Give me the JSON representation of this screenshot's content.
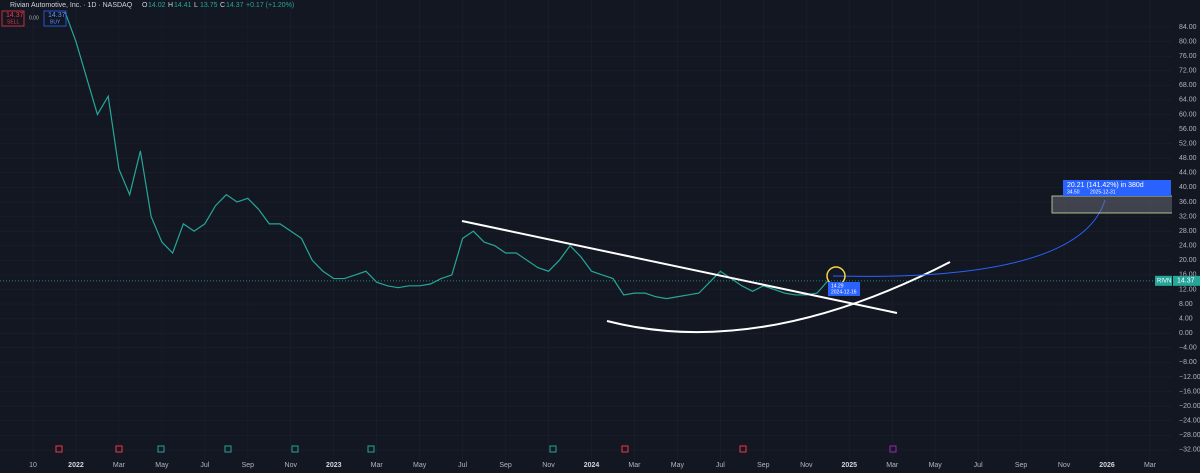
{
  "chart_data": {
    "type": "line",
    "title": "Rivian Automotive, Inc. · 1D · NASDAQ",
    "ohlc": [
      {
        "label": "O",
        "value": 14.02
      },
      {
        "label": "H",
        "value": 14.41
      },
      {
        "label": "L",
        "value": 13.75
      },
      {
        "label": "C",
        "value": 14.37
      }
    ],
    "change": "+0.17 (+1.20%)",
    "sell": {
      "price": 14.37,
      "label": "SELL"
    },
    "spread": "0.00",
    "buy": {
      "price": 14.37,
      "label": "BUY"
    },
    "symbol": "RIVN",
    "last_price": 14.37,
    "projection": {
      "text": "20.21 (141.42%) in 380d",
      "price": "34.50",
      "date": "2025-12-31"
    },
    "marker": {
      "price": "14.29",
      "date": "2024-12-16"
    },
    "color": "#26a69a",
    "ylim": [
      -33.4,
      91.4
    ],
    "yticks": [
      {
        "value": 84,
        "label": "84.00"
      },
      {
        "value": 80,
        "label": "80.00"
      },
      {
        "value": 76,
        "label": "76.00"
      },
      {
        "value": 72,
        "label": "72.00"
      },
      {
        "value": 68,
        "label": "68.00"
      },
      {
        "value": 64,
        "label": "64.00"
      },
      {
        "value": 60,
        "label": "60.00"
      },
      {
        "value": 56,
        "label": "56.00"
      },
      {
        "value": 52,
        "label": "52.00"
      },
      {
        "value": 48,
        "label": "48.00"
      },
      {
        "value": 44,
        "label": "44.00"
      },
      {
        "value": 40,
        "label": "40.00"
      },
      {
        "value": 36,
        "label": "36.00"
      },
      {
        "value": 32,
        "label": "32.00"
      },
      {
        "value": 28,
        "label": "28.00"
      },
      {
        "value": 24,
        "label": "24.00"
      },
      {
        "value": 20,
        "label": "20.00"
      },
      {
        "value": 16,
        "label": "16.00"
      },
      {
        "value": 12,
        "label": "12.00"
      },
      {
        "value": 8,
        "label": "8.00"
      },
      {
        "value": 4,
        "label": "4.00"
      },
      {
        "value": 0,
        "label": "0.00"
      },
      {
        "value": -4,
        "label": "−4.00"
      },
      {
        "value": -8,
        "label": "−8.00"
      },
      {
        "value": -12,
        "label": "−12.00"
      },
      {
        "value": -16,
        "label": "−16.00"
      },
      {
        "value": -20,
        "label": "−20.00"
      },
      {
        "value": -24,
        "label": "−24.00"
      },
      {
        "value": -28,
        "label": "−28.00"
      },
      {
        "value": -32,
        "label": "−32.00"
      }
    ],
    "categories": [
      "10",
      null,
      null,
      null,
      "2022",
      null,
      null,
      null,
      "Mar",
      null,
      null,
      null,
      "May",
      null,
      null,
      null,
      "Jul",
      null,
      null,
      null,
      "Sep",
      null,
      null,
      null,
      "Nov",
      null,
      null,
      null,
      "2023",
      null,
      null,
      null,
      "Mar",
      null,
      null,
      null,
      "May",
      null,
      null,
      null,
      "Jul",
      null,
      null,
      null,
      "Sep",
      null,
      null,
      null,
      "Nov",
      null,
      null,
      null,
      "2024",
      null,
      null,
      null,
      "Mar",
      null,
      null,
      null,
      "May",
      null,
      null,
      null,
      "Jul",
      null,
      null,
      null,
      "Sep",
      null,
      null,
      null,
      "Nov",
      null,
      null,
      null,
      "2025",
      null,
      null,
      null,
      "Mar",
      null,
      null,
      null,
      "May",
      null,
      null,
      null,
      "Jul",
      null,
      null,
      null,
      "Sep",
      null,
      null,
      null,
      "Nov",
      null,
      null,
      null,
      "2026",
      null,
      null,
      null,
      "Mar"
    ],
    "values": [
      null,
      null,
      null,
      88,
      80,
      70,
      60,
      65,
      45,
      38,
      50,
      32,
      25,
      22,
      30,
      28,
      30,
      35,
      38,
      36,
      37,
      34,
      30,
      30,
      28,
      26,
      20,
      17,
      15,
      15,
      16,
      17,
      14,
      13,
      12.5,
      13,
      13,
      13.5,
      15,
      16,
      26,
      28,
      25,
      24,
      22,
      22,
      20,
      18,
      17,
      20,
      24,
      21,
      17,
      16,
      15,
      10.5,
      11,
      11,
      10,
      9.5,
      10,
      10.5,
      11,
      14,
      17,
      15,
      13,
      11.5,
      13,
      12,
      11,
      10.5,
      10.5,
      11,
      14.37,
      null,
      null,
      null,
      null,
      null,
      null,
      null,
      null,
      null,
      null,
      null,
      null,
      null,
      null,
      null,
      null,
      null,
      null,
      null,
      null,
      null,
      null,
      null,
      null,
      null,
      null,
      null,
      null,
      null,
      null
    ]
  }
}
